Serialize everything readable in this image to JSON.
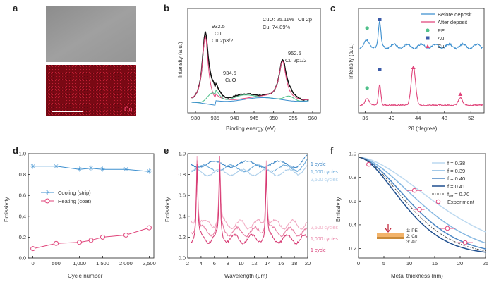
{
  "colors": {
    "blue": "#3c8fcf",
    "pink": "#e0457b",
    "green": "#4fc08a",
    "navy": "#3b5aa8",
    "axis": "#222222",
    "text": "#333333",
    "red_map": "#8c0c1a"
  },
  "panel_a": {
    "letter": "a",
    "map_label": "Cu"
  },
  "panel_b": {
    "letter": "b",
    "xlabel": "Binding energy (eV)",
    "ylabel": "Intensity (a.u.)",
    "legend_line1": "CuO: 25.11%",
    "legend_line2": "Cu: 74.89%",
    "legend_tag": "Cu 2p",
    "ann1_value": "932.5",
    "ann1_species": "Cu",
    "ann1_orbital": "Cu 2p3/2",
    "ann2_value": "934.5",
    "ann2_species": "CuO",
    "ann3_value": "952.5",
    "ann3_orbital": "Cu 2p1/2"
  },
  "panel_c": {
    "letter": "c",
    "xlabel": "2θ (degree)",
    "ylabel": "Intensity (a.u.)",
    "legend_before": "Before deposit",
    "legend_after": "After deposit",
    "legend_pe": "PE",
    "legend_au": "Au",
    "legend_cu": "Cu"
  },
  "panel_d": {
    "letter": "d",
    "xlabel": "Cycle number",
    "ylabel": "Emissivity",
    "legend_cooling": "Cooling (strip)",
    "legend_heating": "Heating (coat)"
  },
  "panel_e": {
    "letter": "e",
    "xlabel": "Wavelength (μm)",
    "ylabel": "Emissivity",
    "label_top_1": "1 cycle",
    "label_top_2": "1,000 cycles",
    "label_top_3": "2,500 cycles",
    "label_bot_1": "2,500 cycles",
    "label_bot_2": "1,000 cycles",
    "label_bot_3": "1 cycle"
  },
  "panel_f": {
    "letter": "f",
    "xlabel": "Metal thickness (nm)",
    "ylabel": "Emissivity",
    "legend_f1": "f = 0.38",
    "legend_f2": "f = 0.39",
    "legend_f3": "f = 0.40",
    "legend_f4": "f = 0.41",
    "legend_f5": "f",
    "legend_f5_sub": "eff",
    "legend_f5_val": " = 0.70",
    "legend_exp": "Experiment",
    "inset_1": "1: PE",
    "inset_2": "2: Cu",
    "inset_3": "3: Air"
  },
  "chart_data": [
    {
      "panel": "b",
      "type": "line",
      "xlabel": "Binding energy (eV)",
      "ylabel": "Intensity (a.u.)",
      "xlim": [
        928,
        962
      ],
      "xticks": [
        930,
        935,
        940,
        945,
        950,
        955,
        960
      ],
      "series": [
        {
          "name": "Cu",
          "x": [
            928,
            931,
            932,
            932.5,
            933,
            934,
            936,
            940,
            945,
            950,
            951.5,
            952.5,
            953.5,
            955,
            960
          ],
          "y": [
            0.02,
            0.3,
            0.7,
            0.95,
            0.7,
            0.28,
            0.06,
            0.03,
            0.03,
            0.05,
            0.35,
            0.5,
            0.25,
            0.06,
            0.02
          ]
        },
        {
          "name": "CuO",
          "x": [
            928,
            932,
            934.5,
            937,
            940,
            950,
            953,
            955,
            962
          ],
          "y": [
            0.01,
            0.05,
            0.15,
            0.05,
            0.01,
            0.01,
            0.05,
            0.03,
            0.0
          ]
        }
      ]
    },
    {
      "panel": "c",
      "type": "line",
      "xlabel": "2θ (degree)",
      "ylabel": "Intensity (a.u.)",
      "xlim": [
        35,
        54
      ],
      "xticks": [
        36,
        40,
        44,
        48,
        52
      ],
      "series": [
        {
          "name": "Before deposit",
          "peaks_2theta": [
            36.3,
            38.2
          ]
        },
        {
          "name": "After deposit",
          "peaks_2theta": [
            36.3,
            38.2,
            43.3,
            50.4
          ]
        }
      ]
    },
    {
      "panel": "d",
      "type": "line",
      "xlabel": "Cycle number",
      "ylabel": "Emissivity",
      "xlim": [
        -100,
        2600
      ],
      "ylim": [
        0,
        1.0
      ],
      "xticks": [
        0,
        500,
        1000,
        1500,
        2000,
        2500
      ],
      "yticks": [
        0,
        0.2,
        0.4,
        0.6,
        0.8,
        1.0
      ],
      "series": [
        {
          "name": "Cooling (strip)",
          "x": [
            0,
            500,
            1000,
            1250,
            1500,
            2000,
            2500
          ],
          "y": [
            0.88,
            0.88,
            0.85,
            0.86,
            0.85,
            0.85,
            0.83
          ]
        },
        {
          "name": "Heating (coat)",
          "x": [
            0,
            500,
            1000,
            1250,
            1500,
            2000,
            2500
          ],
          "y": [
            0.09,
            0.14,
            0.15,
            0.17,
            0.2,
            0.22,
            0.29
          ]
        }
      ]
    },
    {
      "panel": "e",
      "type": "line",
      "xlabel": "Wavelength (μm)",
      "ylabel": "Emissivity",
      "xlim": [
        2,
        20
      ],
      "ylim": [
        0,
        1.0
      ],
      "xticks": [
        2,
        4,
        6,
        8,
        10,
        12,
        14,
        16,
        18,
        20
      ],
      "yticks": [
        0,
        0.2,
        0.4,
        0.6,
        0.8,
        1.0
      ],
      "series": [
        {
          "name": "1 cycle (cooling)",
          "baseline": 0.9
        },
        {
          "name": "1,000 cycles (cooling)",
          "baseline": 0.86
        },
        {
          "name": "2,500 cycles (cooling)",
          "baseline": 0.82
        },
        {
          "name": "2,500 cycles (heating)",
          "baseline": 0.32,
          "peaks_um": [
            3.4,
            6.8,
            13.8
          ]
        },
        {
          "name": "1,000 cycles (heating)",
          "baseline": 0.25,
          "peaks_um": [
            3.4,
            6.8,
            13.8
          ]
        },
        {
          "name": "1 cycle (heating)",
          "baseline": 0.18,
          "peaks_um": [
            3.4,
            6.8,
            13.8
          ]
        }
      ]
    },
    {
      "panel": "f",
      "type": "line",
      "xlabel": "Metal thickness (nm)",
      "ylabel": "Emissivity",
      "xlim": [
        0,
        25
      ],
      "ylim": [
        0.12,
        1.0
      ],
      "xticks": [
        0,
        5,
        10,
        15,
        20,
        25
      ],
      "yticks": [
        0.2,
        0.4,
        0.6,
        0.8,
        1.0
      ],
      "series": [
        {
          "name": "f = 0.38",
          "decay_nm": 20
        },
        {
          "name": "f = 0.39",
          "decay_nm": 16
        },
        {
          "name": "f = 0.40",
          "decay_nm": 13.5
        },
        {
          "name": "f = 0.41",
          "decay_nm": 11.5
        },
        {
          "name": "f_eff = 0.70",
          "decay_nm": 12.5
        },
        {
          "name": "Experiment",
          "x": [
            2,
            11,
            12,
            17.5,
            21
          ],
          "y": [
            0.91,
            0.69,
            0.53,
            0.37,
            0.25
          ],
          "xerr": [
            0,
            1.5,
            1,
            1.5,
            1.5
          ]
        }
      ]
    }
  ]
}
